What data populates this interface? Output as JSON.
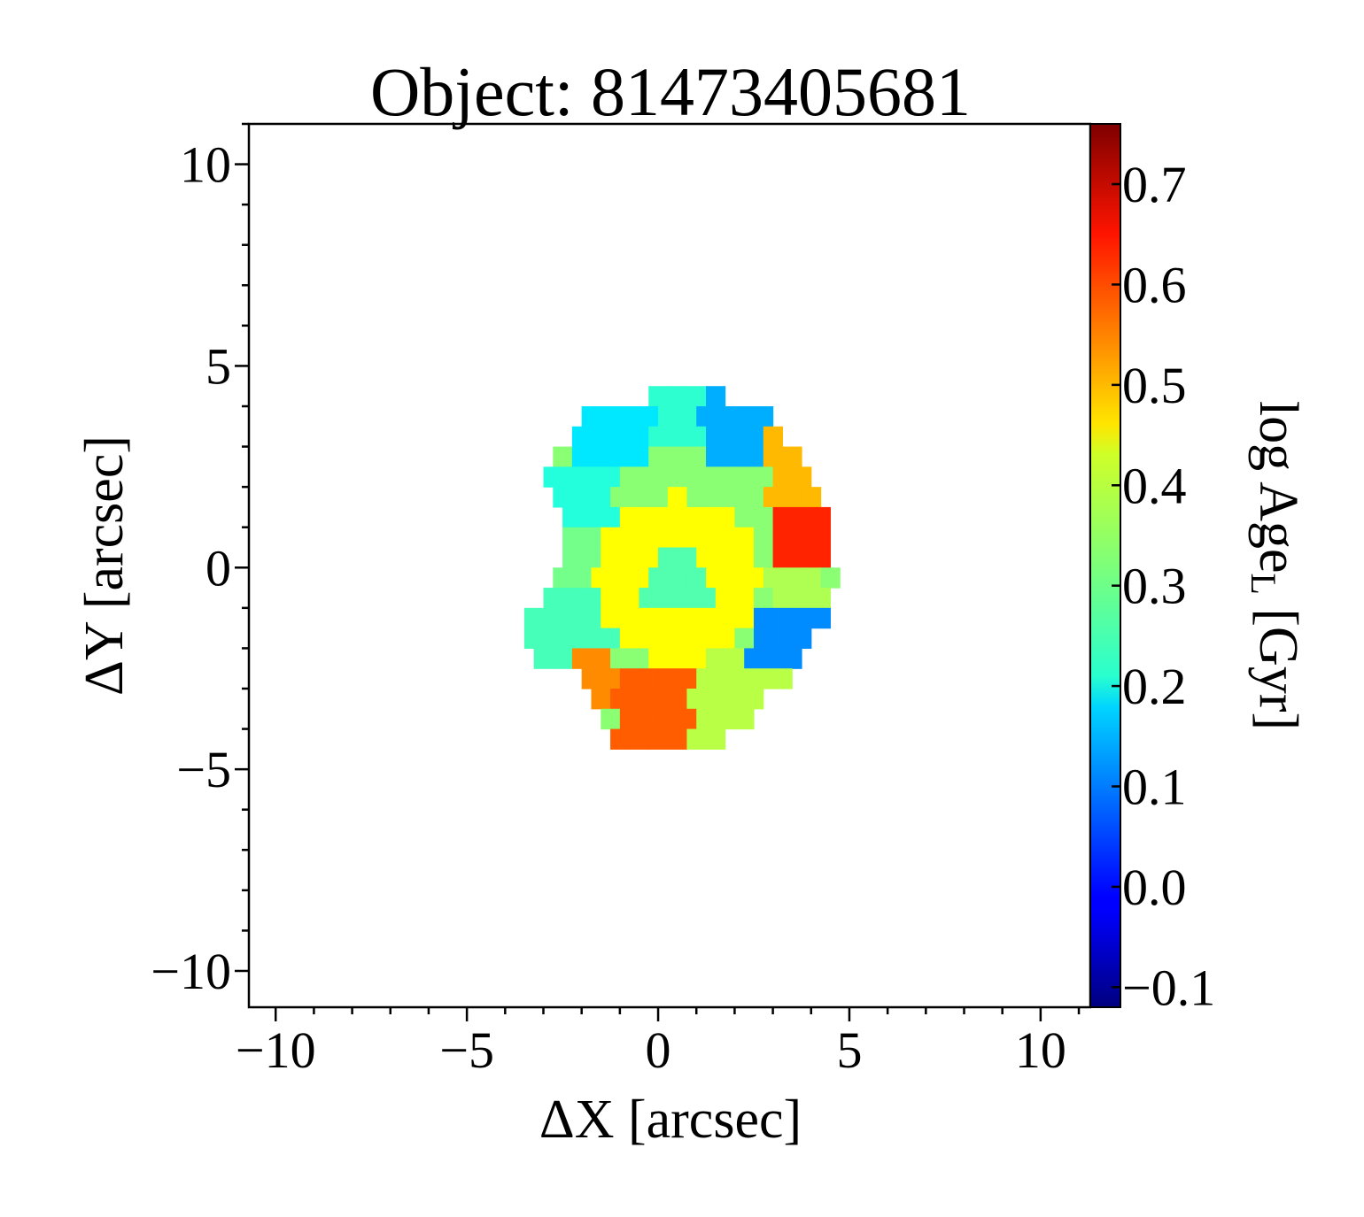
{
  "chart_data": {
    "type": "heatmap",
    "title": "Object: 81473405681",
    "xlabel": "ΔX [arcsec]",
    "ylabel": "ΔY [arcsec]",
    "colorbar_label_main": "log Age",
    "colorbar_label_sub": "L",
    "colorbar_label_unit": " [Gyr]",
    "xlim": [
      -10.7,
      11.3
    ],
    "ylim": [
      -10.9,
      11.0
    ],
    "xticks": [
      -10,
      -5,
      0,
      5,
      10
    ],
    "xtick_labels": [
      "−10",
      "−5",
      "0",
      "5",
      "10"
    ],
    "yticks": [
      -10,
      -5,
      0,
      5,
      10
    ],
    "ytick_labels": [
      "−10",
      "−5",
      "0",
      "5",
      "10"
    ],
    "colormap": "jet",
    "color_range": [
      -0.12,
      0.76
    ],
    "colorbar_ticks": [
      -0.1,
      0.0,
      0.1,
      0.2,
      0.3,
      0.4,
      0.5,
      0.6,
      0.7
    ],
    "colorbar_tick_labels": [
      "−0.1",
      "0.0",
      "0.1",
      "0.2",
      "0.3",
      "0.4",
      "0.5",
      "0.6",
      "0.7"
    ],
    "grid": false,
    "pixel_size_arcsec": 0.5,
    "map": {
      "rows": [
        {
          "y": 4.25,
          "x_min": 0.0,
          "x_max": 1.75
        },
        {
          "y": 3.75,
          "x_min": -1.75,
          "x_max": 2.75
        },
        {
          "y": 3.25,
          "x_min": -2.0,
          "x_max": 3.25
        },
        {
          "y": 2.75,
          "x_min": -2.5,
          "x_max": 3.75
        },
        {
          "y": 2.25,
          "x_min": -2.75,
          "x_max": 4.0
        },
        {
          "y": 1.75,
          "x_min": -2.5,
          "x_max": 4.25
        },
        {
          "y": 1.25,
          "x_min": -2.25,
          "x_max": 4.5
        },
        {
          "y": 0.75,
          "x_min": -2.25,
          "x_max": 4.5
        },
        {
          "y": 0.25,
          "x_min": -2.25,
          "x_max": 4.5
        },
        {
          "y": -0.25,
          "x_min": -2.5,
          "x_max": 4.5
        },
        {
          "y": -0.75,
          "x_min": -2.75,
          "x_max": 4.5
        },
        {
          "y": -1.25,
          "x_min": -3.25,
          "x_max": 4.25
        },
        {
          "y": -1.75,
          "x_min": -3.25,
          "x_max": 4.0
        },
        {
          "y": -2.25,
          "x_min": -3.0,
          "x_max": 3.75
        },
        {
          "y": -2.75,
          "x_min": -1.75,
          "x_max": 3.25
        },
        {
          "y": -3.25,
          "x_min": -1.5,
          "x_max": 2.75
        },
        {
          "y": -3.75,
          "x_min": -1.25,
          "x_max": 2.25
        },
        {
          "y": -4.25,
          "x_min": -1.0,
          "x_max": 1.75
        }
      ],
      "regions": [
        {
          "x": [
            0.0,
            1.2
          ],
          "y": [
            3.0,
            4.5
          ],
          "value": 0.25
        },
        {
          "x": [
            -2.0,
            0.0
          ],
          "y": [
            2.5,
            4.5
          ],
          "value": 0.19
        },
        {
          "x": [
            1.2,
            3.0
          ],
          "y": [
            2.5,
            4.5
          ],
          "value": 0.14
        },
        {
          "x": [
            3.0,
            4.5
          ],
          "y": [
            1.5,
            3.5
          ],
          "value": 0.49
        },
        {
          "x": [
            3.0,
            4.5
          ],
          "y": [
            0.0,
            1.5
          ],
          "value": 0.62
        },
        {
          "x": [
            3.0,
            4.5
          ],
          "y": [
            -1.0,
            0.0
          ],
          "value": 0.36
        },
        {
          "x": [
            2.5,
            4.5
          ],
          "y": [
            -2.5,
            -1.0
          ],
          "value": 0.11
        },
        {
          "x": [
            1.0,
            3.5
          ],
          "y": [
            -4.5,
            -1.8
          ],
          "value": 0.37
        },
        {
          "x": [
            -1.0,
            1.0
          ],
          "y": [
            -4.5,
            -2.5
          ],
          "value": 0.57
        },
        {
          "x": [
            -2.0,
            -1.0
          ],
          "y": [
            -3.5,
            -2.2
          ],
          "value": 0.53
        },
        {
          "x": [
            -3.5,
            -1.0
          ],
          "y": [
            -2.5,
            -0.7
          ],
          "value": 0.27
        },
        {
          "x": [
            -3.0,
            -1.5
          ],
          "y": [
            -0.7,
            1.0
          ],
          "value": 0.31
        },
        {
          "x": [
            -3.0,
            -1.0
          ],
          "y": [
            1.0,
            2.5
          ],
          "value": 0.24
        },
        {
          "x": [
            -2.2,
            -1.0
          ],
          "y": [
            1.0,
            1.7
          ],
          "value": 0.14
        }
      ],
      "center": {
        "x": 0.5,
        "y": -0.3,
        "core_radius": 0.9,
        "ring_radius": 2.1,
        "core_value": 0.28,
        "ring_value": 0.43,
        "halo_value": 0.33
      }
    }
  }
}
